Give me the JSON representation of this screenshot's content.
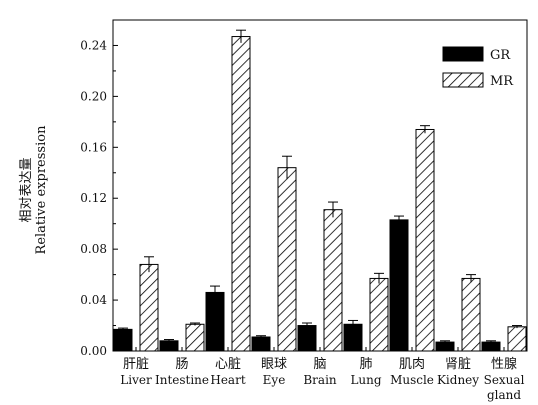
{
  "chart_data": {
    "type": "bar",
    "ylabel_zh": "相对表达量",
    "ylabel": "Relative expression",
    "ylim": [
      0,
      0.26
    ],
    "yticks": [
      "0.00",
      "0.04",
      "0.08",
      "0.12",
      "0.16",
      "0.20",
      "0.24"
    ],
    "grid": false,
    "legend_position": "top-right",
    "categories": [
      {
        "zh": "肝脏",
        "en": "Liver"
      },
      {
        "zh": "肠",
        "en": "Intestine"
      },
      {
        "zh": "心脏",
        "en": "Heart"
      },
      {
        "zh": "眼球",
        "en": "Eye"
      },
      {
        "zh": "脑",
        "en": "Brain"
      },
      {
        "zh": "肺",
        "en": "Lung"
      },
      {
        "zh": "肌肉",
        "en": "Muscle"
      },
      {
        "zh": "肾脏",
        "en": "Kidney"
      },
      {
        "zh": "性腺",
        "en": "Sexual",
        "en2": "gland"
      }
    ],
    "series": [
      {
        "name": "GR",
        "style": "solid-black",
        "values": [
          0.017,
          0.008,
          0.046,
          0.011,
          0.02,
          0.021,
          0.103,
          0.007,
          0.007
        ],
        "errors": [
          0.001,
          0.001,
          0.005,
          0.001,
          0.002,
          0.003,
          0.003,
          0.001,
          0.001
        ]
      },
      {
        "name": "MR",
        "style": "hatched",
        "values": [
          0.068,
          0.021,
          0.247,
          0.144,
          0.111,
          0.057,
          0.174,
          0.057,
          0.019
        ],
        "errors": [
          0.006,
          0.001,
          0.005,
          0.009,
          0.006,
          0.004,
          0.003,
          0.003,
          0.001
        ]
      }
    ]
  }
}
